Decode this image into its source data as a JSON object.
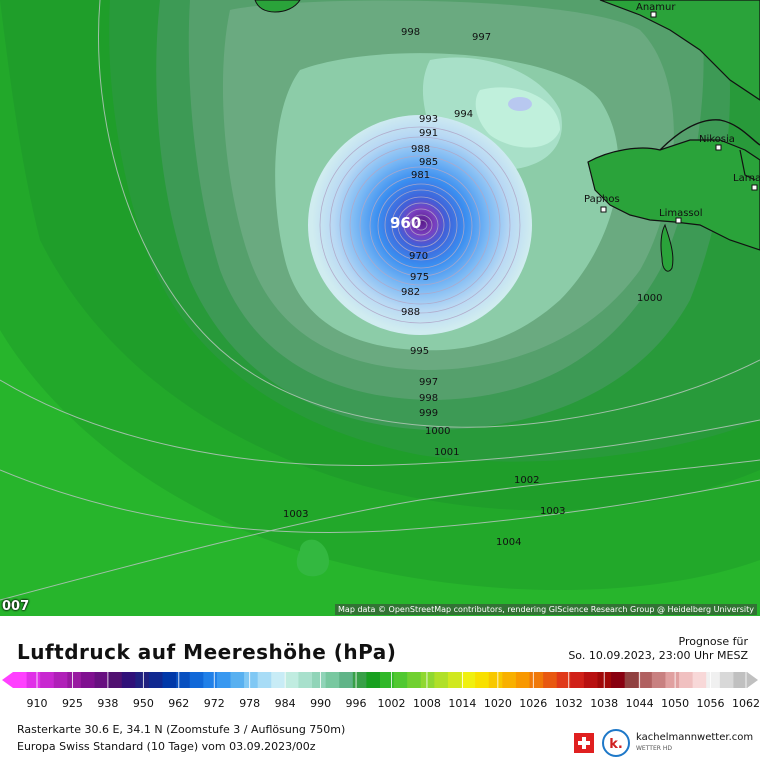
{
  "map": {
    "title": "Luftdruck auf Meereshöhe (hPa)",
    "attribution": "Map data © OpenStreetMap contributors, rendering GIScience Research Group @ Heidelberg University",
    "edge_label": "007",
    "center_pressure_label": "960",
    "cities": [
      "Anamur",
      "Nikosia",
      "Paphos",
      "Limassol",
      "Larna"
    ],
    "isobar_labels": [
      "998",
      "997",
      "994",
      "993",
      "991",
      "988",
      "985",
      "981",
      "970",
      "975",
      "982",
      "988",
      "995",
      "997",
      "998",
      "999",
      "1000",
      "1001",
      "1002",
      "1003",
      "1003",
      "1004",
      "1000"
    ],
    "colors": {
      "outer_green": "#27b52c",
      "low_center": "#5a1a8a",
      "land_green": "#2aa33a",
      "border": "#111111"
    }
  },
  "forecast": {
    "label": "Prognose für",
    "time": "So. 10.09.2023, 23:00 Uhr MESZ"
  },
  "legend": {
    "ticks": [
      "910",
      "925",
      "938",
      "950",
      "962",
      "972",
      "978",
      "984",
      "990",
      "996",
      "1002",
      "1008",
      "1014",
      "1020",
      "1026",
      "1032",
      "1038",
      "1044",
      "1050",
      "1056",
      "1062"
    ],
    "colors": [
      "#ff40ff",
      "#e030e8",
      "#c828d0",
      "#b020b8",
      "#9818a0",
      "#801090",
      "#681080",
      "#501070",
      "#301078",
      "#202080",
      "#102890",
      "#0038a8",
      "#0850c0",
      "#1068d8",
      "#2080e8",
      "#3898f0",
      "#58b0f0",
      "#80c8f4",
      "#a8dcf6",
      "#c8ecf6",
      "#c0ece0",
      "#a8e0cc",
      "#90d4b8",
      "#78c8a0",
      "#60b488",
      "#38a048",
      "#18a020",
      "#30b828",
      "#50c830",
      "#70d030",
      "#90d830",
      "#b0e028",
      "#d0e820",
      "#f0f010",
      "#f8e000",
      "#f8c800",
      "#f8b000",
      "#f89800",
      "#f07808",
      "#e85810",
      "#e03818",
      "#d02018",
      "#b81010",
      "#a00808",
      "#880010",
      "#904040",
      "#b06060",
      "#c88080",
      "#e0a0a0",
      "#f0c0c0",
      "#f8d8d8",
      "#f0f0f0",
      "#d8d8d8",
      "#c0c0c0"
    ]
  },
  "info": {
    "line1": "Rasterkarte 30.6 E, 34.1 N (Zoomstufe 3 / Auflösung 750m)",
    "line2": "Europa Swiss Standard (10 Tage) vom  03.09.2023/00z"
  },
  "brand": {
    "name": "kachelmannwetter.com",
    "subtitle": "WETTER HD",
    "logo_letter": "k."
  }
}
